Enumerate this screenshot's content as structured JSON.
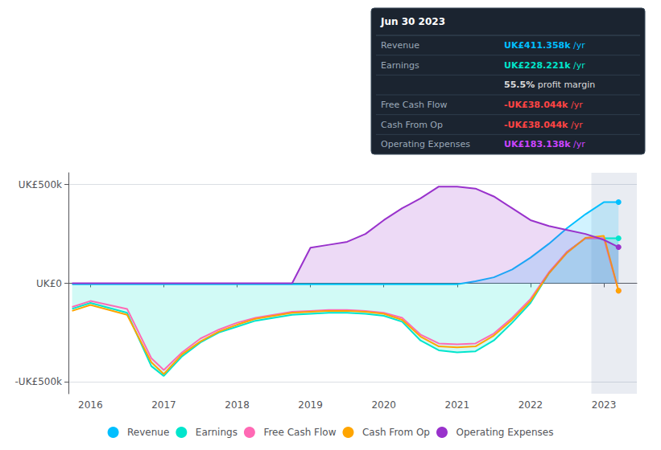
{
  "chart_data": {
    "type": "line",
    "x": [
      2015.75,
      2016.0,
      2016.5,
      2016.83,
      2017.0,
      2017.25,
      2017.5,
      2017.75,
      2018.0,
      2018.25,
      2018.5,
      2018.75,
      2019.0,
      2019.25,
      2019.5,
      2019.75,
      2020.0,
      2020.25,
      2020.5,
      2020.75,
      2021.0,
      2021.25,
      2021.5,
      2021.75,
      2022.0,
      2022.25,
      2022.5,
      2022.75,
      2023.0,
      2023.2
    ],
    "xlim": [
      2015.7,
      2023.45
    ],
    "xticks": [
      2016,
      2017,
      2018,
      2019,
      2020,
      2021,
      2022,
      2023
    ],
    "ylim": [
      -560,
      560
    ],
    "yticks": [
      {
        "value": -500,
        "label": "-UK£500k"
      },
      {
        "value": 0,
        "label": "UK£0"
      },
      {
        "value": 500,
        "label": "UK£500k"
      }
    ],
    "grid": true,
    "legend": "bottom",
    "highlight": [
      2022.83,
      2023.45
    ],
    "series": [
      {
        "name": "Revenue",
        "type": "area",
        "color": "#00bfff",
        "values": [
          -5,
          -5,
          -5,
          -5,
          -5,
          -5,
          -5,
          -5,
          -5,
          -5,
          -5,
          -5,
          -5,
          -5,
          -5,
          -5,
          -5,
          -5,
          -5,
          -5,
          -5,
          10,
          30,
          70,
          130,
          200,
          280,
          350,
          411,
          411
        ]
      },
      {
        "name": "Earnings",
        "type": "area",
        "color": "#00e5cc",
        "values": [
          -130,
          -100,
          -150,
          -420,
          -470,
          -370,
          -300,
          -250,
          -220,
          -190,
          -175,
          -160,
          -155,
          -150,
          -150,
          -155,
          -165,
          -195,
          -290,
          -340,
          -350,
          -345,
          -290,
          -200,
          -100,
          50,
          160,
          228,
          228,
          228
        ]
      },
      {
        "name": "Free Cash Flow",
        "type": "line",
        "color": "#ff69b4",
        "values": [
          -120,
          -90,
          -130,
          -380,
          -440,
          -350,
          -280,
          -235,
          -200,
          -175,
          -160,
          -145,
          -140,
          -135,
          -135,
          -140,
          -150,
          -175,
          -260,
          -305,
          -310,
          -305,
          -255,
          -175,
          -80,
          55,
          160,
          228,
          228,
          -38
        ]
      },
      {
        "name": "Cash From Op",
        "type": "line",
        "color": "#ffa500",
        "values": [
          -140,
          -110,
          -160,
          -400,
          -460,
          -360,
          -295,
          -245,
          -210,
          -180,
          -165,
          -150,
          -145,
          -140,
          -140,
          -145,
          -155,
          -185,
          -270,
          -320,
          -325,
          -320,
          -265,
          -185,
          -90,
          50,
          155,
          230,
          240,
          -38
        ]
      },
      {
        "name": "Operating Expenses",
        "type": "area",
        "color": "#9932cc",
        "values": [
          0,
          0,
          0,
          0,
          0,
          0,
          0,
          0,
          0,
          0,
          0,
          0,
          180,
          195,
          210,
          250,
          320,
          380,
          430,
          490,
          490,
          480,
          440,
          380,
          320,
          290,
          270,
          250,
          220,
          183
        ]
      }
    ],
    "tooltip_box": {
      "title": "Jun 30 2023",
      "rows": [
        {
          "label": "Revenue",
          "value": "UK£411.358k",
          "suffix": " /yr",
          "color": "#00bfff"
        },
        {
          "label": "Earnings",
          "value": "UK£228.221k",
          "suffix": " /yr",
          "color": "#00e5cc"
        },
        {
          "value": "55.5%",
          "suffix": " profit margin",
          "color": "#dddddd"
        },
        {
          "label": "Free Cash Flow",
          "value": "-UK£38.044k",
          "suffix": " /yr",
          "color": "#ff4444"
        },
        {
          "label": "Cash From Op",
          "value": "-UK£38.044k",
          "suffix": " /yr",
          "color": "#ff4444"
        },
        {
          "label": "Operating Expenses",
          "value": "UK£183.138k",
          "suffix": " /yr",
          "color": "#cc44ff"
        }
      ]
    }
  }
}
